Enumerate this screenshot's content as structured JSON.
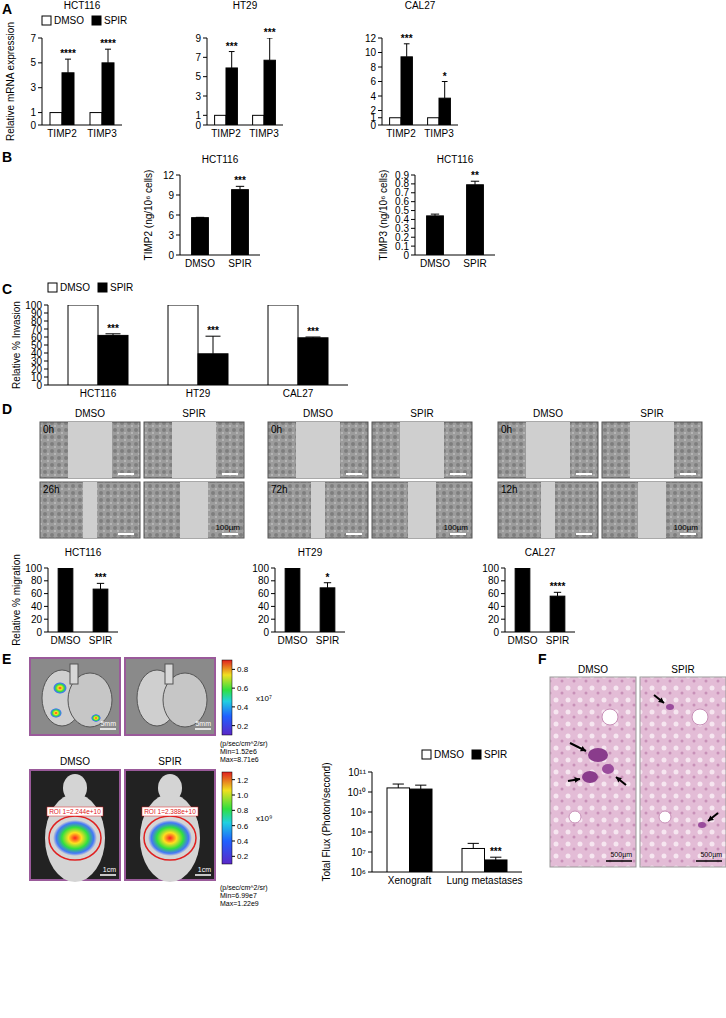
{
  "panel_labels": [
    "A",
    "B",
    "C",
    "D",
    "E",
    "F"
  ],
  "chart_data": [
    {
      "type": "bar",
      "title": "HCT116",
      "y_label": "Relative mRNA expression",
      "categories": [
        "TIMP2",
        "TIMP3"
      ],
      "series": [
        {
          "name": "DMSO",
          "color": "#ffffff",
          "values": [
            1,
            1
          ]
        },
        {
          "name": "SPIR",
          "color": "#000000",
          "values": [
            4.2,
            5.0
          ],
          "errors": [
            1.1,
            1.1
          ],
          "significance": [
            "****",
            "****"
          ]
        }
      ],
      "ylim": [
        0,
        7
      ],
      "yticks": [
        0,
        1,
        3,
        5,
        7
      ],
      "legend": "top-left"
    },
    {
      "type": "bar",
      "title": "HT29",
      "categories": [
        "TIMP2",
        "TIMP3"
      ],
      "series": [
        {
          "name": "DMSO",
          "color": "#ffffff",
          "values": [
            1,
            1
          ]
        },
        {
          "name": "SPIR",
          "color": "#000000",
          "values": [
            5.9,
            6.7
          ],
          "errors": [
            1.7,
            2.3
          ],
          "significance": [
            "***",
            "***"
          ]
        }
      ],
      "ylim": [
        0,
        9
      ],
      "yticks": [
        0,
        1,
        3,
        5,
        7,
        9
      ]
    },
    {
      "type": "bar",
      "title": "CAL27",
      "categories": [
        "TIMP2",
        "TIMP3"
      ],
      "series": [
        {
          "name": "DMSO",
          "color": "#ffffff",
          "values": [
            1,
            1
          ]
        },
        {
          "name": "SPIR",
          "color": "#000000",
          "values": [
            9.4,
            3.7
          ],
          "errors": [
            1.8,
            2.3
          ],
          "significance": [
            "***",
            "*"
          ]
        }
      ],
      "ylim": [
        0,
        12
      ],
      "yticks": [
        0,
        1,
        2,
        4,
        6,
        8,
        10,
        12
      ]
    },
    {
      "type": "bar",
      "title": "HCT116",
      "y_label": "TIMP2 (ng/10⁶ cells)",
      "categories": [
        "DMSO",
        "SPIR"
      ],
      "series": [
        {
          "color": "#000000",
          "values": [
            5.6,
            9.8
          ],
          "errors": [
            0.05,
            0.5
          ],
          "significance": [
            null,
            "***"
          ]
        }
      ],
      "ylim": [
        0,
        12
      ],
      "yticks": [
        0,
        3,
        6,
        9,
        12
      ]
    },
    {
      "type": "bar",
      "title": "HCT116",
      "y_label": "TIMP3 (ng/10⁶ cells)",
      "categories": [
        "DMSO",
        "SPIR"
      ],
      "series": [
        {
          "color": "#000000",
          "values": [
            0.44,
            0.79
          ],
          "errors": [
            0.02,
            0.04
          ],
          "significance": [
            null,
            "**"
          ]
        }
      ],
      "ylim": [
        0,
        0.9
      ],
      "yticks": [
        0,
        0.1,
        0.2,
        0.3,
        0.4,
        0.5,
        0.6,
        0.7,
        0.8,
        0.9
      ]
    },
    {
      "type": "bar",
      "y_label": "Relative % Invasion",
      "categories": [
        "HCT116",
        "HT29",
        "CAL27"
      ],
      "series": [
        {
          "name": "DMSO",
          "color": "#ffffff",
          "values": [
            100,
            100,
            100
          ]
        },
        {
          "name": "SPIR",
          "color": "#000000",
          "values": [
            62,
            39,
            59
          ],
          "errors": [
            2,
            22,
            1
          ],
          "significance": [
            "***",
            "***",
            "***"
          ]
        }
      ],
      "ylim": [
        0,
        100
      ],
      "yticks": [
        0,
        10,
        20,
        30,
        40,
        50,
        60,
        70,
        80,
        90,
        100
      ],
      "legend": "top-left"
    },
    {
      "type": "bar",
      "title": "HCT116",
      "y_label": "Relative % migration",
      "categories": [
        "DMSO",
        "SPIR"
      ],
      "series": [
        {
          "color": "#000000",
          "values": [
            100,
            67
          ],
          "errors": [
            null,
            9
          ],
          "significance": [
            null,
            "***"
          ]
        }
      ],
      "ylim": [
        0,
        100
      ],
      "yticks": [
        0,
        20,
        40,
        60,
        80,
        100
      ]
    },
    {
      "type": "bar",
      "title": "HT29",
      "categories": [
        "DMSO",
        "SPIR"
      ],
      "series": [
        {
          "color": "#000000",
          "values": [
            100,
            69
          ],
          "errors": [
            null,
            8
          ],
          "significance": [
            null,
            "*"
          ]
        }
      ],
      "ylim": [
        0,
        100
      ],
      "yticks": [
        0,
        20,
        40,
        60,
        80,
        100
      ]
    },
    {
      "type": "bar",
      "title": "CAL27",
      "categories": [
        "DMSO",
        "SPIR"
      ],
      "series": [
        {
          "color": "#000000",
          "values": [
            100,
            56
          ],
          "errors": [
            null,
            6
          ],
          "significance": [
            null,
            "****"
          ]
        }
      ],
      "ylim": [
        0,
        100
      ],
      "yticks": [
        0,
        20,
        40,
        60,
        80,
        100
      ]
    },
    {
      "type": "bar",
      "y_label": "Total Flux (Photon/second)",
      "log": "y",
      "categories": [
        "Xenograft",
        "Lung metastases"
      ],
      "series": [
        {
          "name": "DMSO",
          "color": "#ffffff",
          "values": [
            16000000000,
            15000000
          ],
          "errors": [
            9000000000,
            12000000
          ]
        },
        {
          "name": "SPIR",
          "color": "#000000",
          "values": [
            14000000000,
            4000000
          ],
          "errors": [
            8000000000,
            1500000
          ],
          "significance": [
            null,
            "***"
          ]
        }
      ],
      "ylim": [
        1000000,
        100000000000
      ],
      "yticks": [
        {
          "value": 1000000,
          "label": "10⁶"
        },
        {
          "value": 10000000,
          "label": "10⁷"
        },
        {
          "value": 100000000,
          "label": "10⁸"
        },
        {
          "value": 1000000000,
          "label": "10⁹"
        },
        {
          "value": 10000000000,
          "label": "10¹⁰"
        },
        {
          "value": 100000000000,
          "label": "10¹¹"
        }
      ],
      "legend": "top-right"
    }
  ],
  "wound_healing": {
    "columns": [
      "DMSO",
      "SPIR"
    ],
    "times": [
      [
        "0h",
        "26h"
      ],
      [
        "0h",
        "72h"
      ],
      [
        "0h",
        "12h"
      ]
    ],
    "scale_bar": "100µm"
  },
  "lung_imaging": {
    "scale_bar": "5mm",
    "colorbar": {
      "lim": [
        0.1,
        0.9
      ],
      "ticks": [
        0.2,
        0.4,
        0.6,
        0.8
      ],
      "multiplier": "x10⁷",
      "unit": "(p/sec/cm^2/sr)",
      "min_label": "Min=1.52e6",
      "max_label": "Max=8.71e6"
    }
  },
  "mouse_imaging": {
    "columns": [
      "DMSO",
      "SPIR"
    ],
    "scale_bar": "1cm",
    "roi_labels": [
      "ROI 1=2.244e+10",
      "ROI 1=2.388e+10"
    ],
    "colorbar": {
      "lim": [
        0.1,
        1.3
      ],
      "ticks": [
        0.2,
        0.4,
        0.6,
        0.8,
        {
          "value": 1,
          "label": "1.0"
        },
        1.2
      ],
      "multiplier": "x10⁹",
      "unit": "(p/sec/cm^2/sr)",
      "min_label": "Min=6.99e7",
      "max_label": "Max=1.22e9"
    }
  },
  "histology": {
    "columns": [
      "DMSO",
      "SPIR"
    ],
    "scale_bar": "500µm"
  }
}
